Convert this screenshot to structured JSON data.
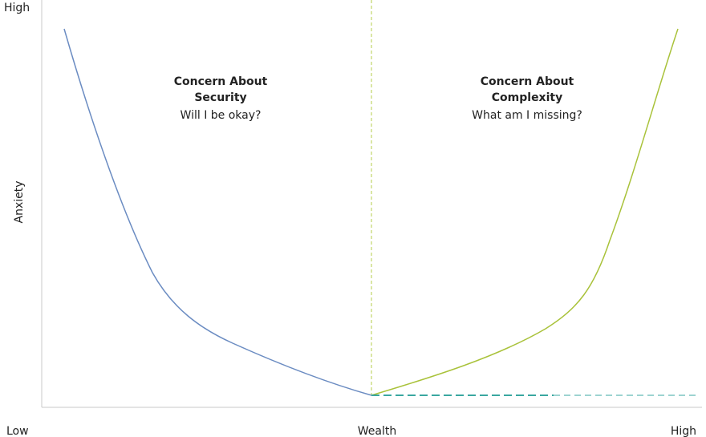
{
  "y_axis": {
    "top_label": "High",
    "title": "Anxiety"
  },
  "x_axis": {
    "left_label": "Low",
    "title": "Wealth",
    "right_label": "High"
  },
  "annotations": [
    {
      "heading": [
        "Concern About",
        "Security"
      ],
      "question": "Will I be okay?"
    },
    {
      "heading": [
        "Concern About",
        "Complexity"
      ],
      "question": "What am I missing?"
    }
  ]
}
